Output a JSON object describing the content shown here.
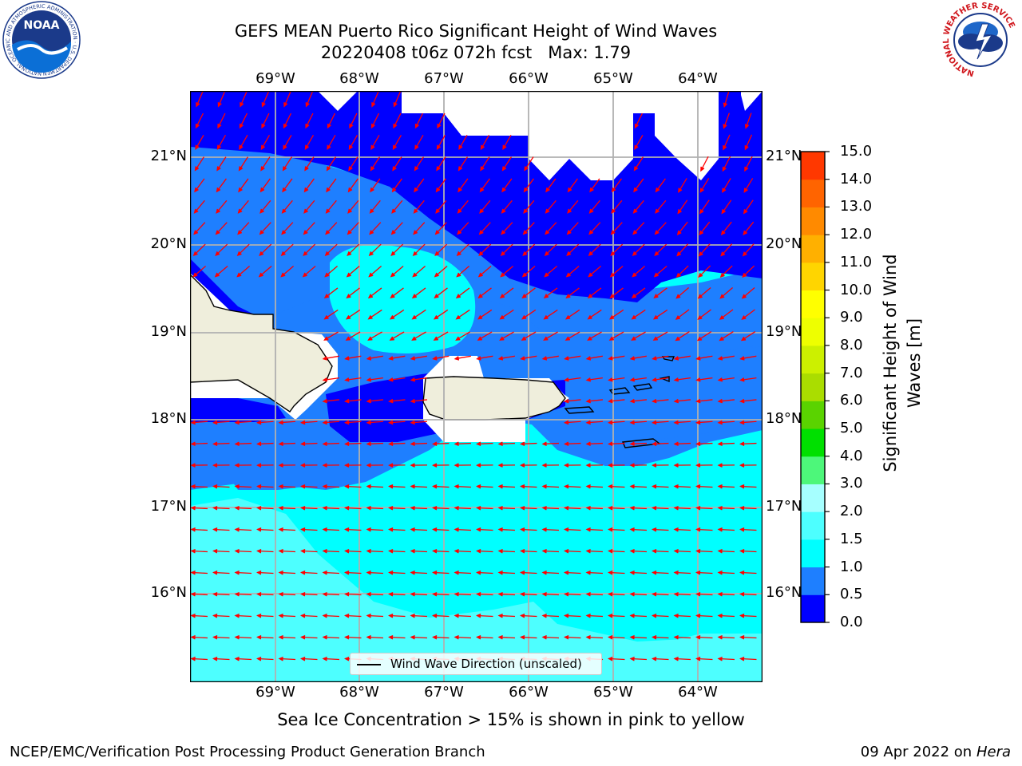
{
  "title": {
    "line1": "GEFS MEAN Puerto Rico Significant Height of Wind Waves",
    "line2": "20220408 t06z 072h fcst   Max: 1.79"
  },
  "map": {
    "lon_labels": [
      "69°W",
      "68°W",
      "67°W",
      "66°W",
      "65°W",
      "64°W"
    ],
    "lat_labels": [
      "21°N",
      "20°N",
      "19°N",
      "18°N",
      "17°N",
      "16°N"
    ],
    "legend_label": "Wind Wave Direction (unscaled)"
  },
  "colorbar": {
    "label_line1": "Significant Height of Wind",
    "label_line2": "Waves [m]",
    "ticks": [
      "0.0",
      "0.5",
      "1.0",
      "1.5",
      "2.0",
      "3.0",
      "4.0",
      "5.0",
      "6.0",
      "7.0",
      "8.0",
      "9.0",
      "10.0",
      "11.0",
      "12.0",
      "13.0",
      "14.0",
      "15.0"
    ],
    "colors": [
      "#0000ff",
      "#1e7fff",
      "#00ffff",
      "#4dffff",
      "#a6ffff",
      "#4df77a",
      "#00e000",
      "#5ad300",
      "#aadd00",
      "#ccf000",
      "#eeff00",
      "#ffff00",
      "#ffd500",
      "#ffb000",
      "#ff8a00",
      "#ff6400",
      "#ff3800",
      "#ff0000"
    ]
  },
  "logos": {
    "noaa_text": "NOAA",
    "noaa_ring": "NATIONAL OCEANIC AND ATMOSPHERIC ADMINISTRATION · U.S. DEPARTMENT OF COMMERCE",
    "nws_ring": "NATIONAL WEATHER SERVICE"
  },
  "caption": "Sea Ice Concentration > 15% is shown in pink to yellow",
  "footer": {
    "left": "NCEP/EMC/Verification Post Processing Product Generation Branch",
    "right_prefix": "09 Apr 2022 on ",
    "right_host": "Hera"
  }
}
